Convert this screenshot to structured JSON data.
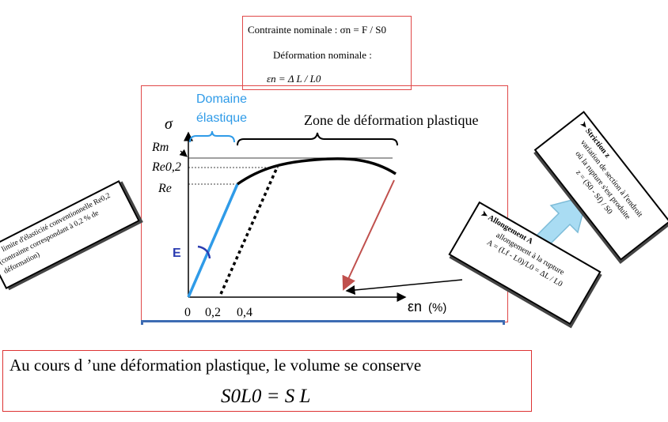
{
  "top_box": {
    "line1": "Contrainte nominale :  σn = F / S0",
    "line2": "Déformation nominale :",
    "line3": "εn = Δ L / L0"
  },
  "diagram": {
    "domain_elastic_line1": "Domaine",
    "domain_elastic_line2": "élastique",
    "zone_plastic": "Zone de déformation plastique",
    "sigma": "σ",
    "rm": "Rm",
    "re02": "Re0,2",
    "re": "Re",
    "e": "E",
    "tick_0": "0",
    "tick_02": "0,2",
    "tick_04": "0,4",
    "x_axis": "εn",
    "x_unit": "(%)"
  },
  "note_left": {
    "line1": "➤ limite d'élasticité conventionnelle Re0,2",
    "line2": "(contrainte correspondant à 0,2 % de déformation)"
  },
  "note_allongement": {
    "title": "➤ Allongement A",
    "line1": "allongement à la rupture",
    "line2": "A = (Lf - L0)/L0 = ΔL / L0"
  },
  "note_striction": {
    "title": "➤ Striction z",
    "line1": "variation de section à l'endroit",
    "line2": "où la rupture s'est produite",
    "line3": "z = (S0 - Sf) / S0"
  },
  "bottom_box": {
    "line1": "Au cours d ’une déformation plastique, le volume se conserve",
    "line2": "S0L0 = S L"
  },
  "colors": {
    "frame": "#e04848",
    "elastic": "#2f9be8",
    "arrow_fill": "#a9dcf3",
    "red_line": "#c0504d",
    "blue_bar": "#3d6cb3",
    "e_color": "#2a3bb0"
  }
}
